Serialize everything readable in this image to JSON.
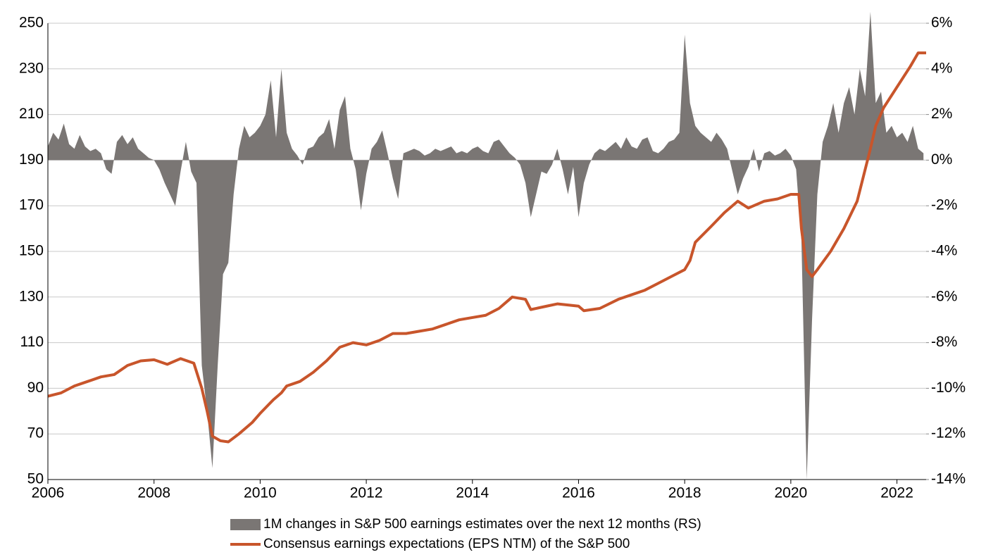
{
  "chart_data": {
    "type": "line",
    "xlim": [
      2006,
      2022.55
    ],
    "xticks": [
      2006,
      2008,
      2010,
      2012,
      2014,
      2016,
      2018,
      2020,
      2022
    ],
    "ylim": [
      50,
      250
    ],
    "yticks": [
      50,
      70,
      90,
      110,
      130,
      150,
      170,
      190,
      210,
      230,
      250
    ],
    "y2lim": [
      -14,
      6
    ],
    "y2ticks": [
      {
        "value": -14,
        "label": "-14%"
      },
      {
        "value": -12,
        "label": "-12%"
      },
      {
        "value": -10,
        "label": "-10%"
      },
      {
        "value": -8,
        "label": "-8%"
      },
      {
        "value": -6,
        "label": "-6%"
      },
      {
        "value": -4,
        "label": "-4%"
      },
      {
        "value": -2,
        "label": "-2%"
      },
      {
        "value": 0,
        "label": "0%"
      },
      {
        "value": 2,
        "label": "2%"
      },
      {
        "value": 4,
        "label": "4%"
      },
      {
        "value": 6,
        "label": "6%"
      }
    ],
    "grid": true,
    "legend": "bottom",
    "series": [
      {
        "name": "1M changes in S&P 500 earnings estimates over the next 12 months (RS)",
        "color": "#7a7674",
        "type": "area",
        "axis": "y2",
        "x": [
          2006.0,
          2006.1,
          2006.2,
          2006.3,
          2006.4,
          2006.5,
          2006.6,
          2006.7,
          2006.8,
          2006.9,
          2007.0,
          2007.1,
          2007.2,
          2007.3,
          2007.4,
          2007.5,
          2007.6,
          2007.7,
          2007.8,
          2007.9,
          2008.0,
          2008.1,
          2008.2,
          2008.3,
          2008.4,
          2008.5,
          2008.6,
          2008.7,
          2008.8,
          2008.9,
          2009.0,
          2009.1,
          2009.2,
          2009.3,
          2009.4,
          2009.5,
          2009.6,
          2009.7,
          2009.8,
          2009.9,
          2010.0,
          2010.1,
          2010.2,
          2010.3,
          2010.4,
          2010.5,
          2010.6,
          2010.7,
          2010.8,
          2010.9,
          2011.0,
          2011.1,
          2011.2,
          2011.3,
          2011.4,
          2011.5,
          2011.6,
          2011.7,
          2011.8,
          2011.9,
          2012.0,
          2012.1,
          2012.2,
          2012.3,
          2012.4,
          2012.5,
          2012.6,
          2012.7,
          2012.8,
          2012.9,
          2013.0,
          2013.1,
          2013.2,
          2013.3,
          2013.4,
          2013.5,
          2013.6,
          2013.7,
          2013.8,
          2013.9,
          2014.0,
          2014.1,
          2014.2,
          2014.3,
          2014.4,
          2014.5,
          2014.6,
          2014.7,
          2014.8,
          2014.9,
          2015.0,
          2015.1,
          2015.2,
          2015.3,
          2015.4,
          2015.5,
          2015.6,
          2015.7,
          2015.8,
          2015.9,
          2016.0,
          2016.1,
          2016.2,
          2016.3,
          2016.4,
          2016.5,
          2016.6,
          2016.7,
          2016.8,
          2016.9,
          2017.0,
          2017.1,
          2017.2,
          2017.3,
          2017.4,
          2017.5,
          2017.6,
          2017.7,
          2017.8,
          2017.9,
          2018.0,
          2018.1,
          2018.2,
          2018.3,
          2018.4,
          2018.5,
          2018.6,
          2018.7,
          2018.8,
          2018.9,
          2019.0,
          2019.1,
          2019.2,
          2019.3,
          2019.4,
          2019.5,
          2019.6,
          2019.7,
          2019.8,
          2019.9,
          2020.0,
          2020.1,
          2020.2,
          2020.3,
          2020.4,
          2020.5,
          2020.6,
          2020.7,
          2020.8,
          2020.9,
          2021.0,
          2021.1,
          2021.2,
          2021.3,
          2021.4,
          2021.5,
          2021.6,
          2021.7,
          2021.8,
          2021.9,
          2022.0,
          2022.1,
          2022.2,
          2022.3,
          2022.4,
          2022.5
        ],
        "values": [
          0.6,
          1.2,
          0.9,
          1.6,
          0.7,
          0.5,
          1.1,
          0.6,
          0.4,
          0.5,
          0.3,
          -0.4,
          -0.6,
          0.8,
          1.1,
          0.7,
          1.0,
          0.5,
          0.3,
          0.1,
          0,
          -0.4,
          -1.0,
          -1.5,
          -2.0,
          -0.5,
          0.8,
          -0.5,
          -1.0,
          -9,
          -11,
          -13.5,
          -9,
          -5,
          -4.5,
          -1.5,
          0.5,
          1.5,
          1.0,
          1.2,
          1.5,
          2.0,
          3.5,
          1.0,
          4.0,
          1.2,
          0.5,
          0.2,
          -0.2,
          0.5,
          0.6,
          1.0,
          1.2,
          1.8,
          0.5,
          2.2,
          2.8,
          0.5,
          -0.4,
          -2.2,
          -0.6,
          0.5,
          0.8,
          1.3,
          0.3,
          -0.8,
          -1.7,
          0.3,
          0.4,
          0.5,
          0.4,
          0.2,
          0.3,
          0.5,
          0.4,
          0.5,
          0.6,
          0.3,
          0.4,
          0.3,
          0.5,
          0.6,
          0.4,
          0.3,
          0.8,
          0.9,
          0.6,
          0.3,
          0.1,
          -0.2,
          -1.0,
          -2.5,
          -1.5,
          -0.5,
          -0.6,
          -0.2,
          0.5,
          -0.4,
          -1.5,
          -0.3,
          -2.5,
          -1.0,
          -0.2,
          0.3,
          0.5,
          0.4,
          0.6,
          0.8,
          0.5,
          1.0,
          0.6,
          0.5,
          0.9,
          1.0,
          0.4,
          0.3,
          0.5,
          0.8,
          0.9,
          1.2,
          5.5,
          2.5,
          1.5,
          1.2,
          1.0,
          0.8,
          1.2,
          0.9,
          0.5,
          -0.5,
          -1.5,
          -0.8,
          -0.3,
          0.5,
          -0.5,
          0.3,
          0.4,
          0.2,
          0.3,
          0.5,
          0.2,
          -0.4,
          -3.5,
          -14,
          -7,
          -1.5,
          0.8,
          1.5,
          2.5,
          1.2,
          2.5,
          3.2,
          2.0,
          4.0,
          2.8,
          6.5,
          2.5,
          3.0,
          1.2,
          1.5,
          1.0,
          1.2,
          0.8,
          1.5,
          0.5,
          0.3
        ]
      },
      {
        "name": "Consensus earnings expectations (EPS NTM) of the S&P 500",
        "color": "#c8552b",
        "type": "line",
        "axis": "y",
        "x": [
          2006.0,
          2006.25,
          2006.5,
          2006.75,
          2007.0,
          2007.25,
          2007.5,
          2007.75,
          2008.0,
          2008.25,
          2008.5,
          2008.75,
          2008.9,
          2009.0,
          2009.1,
          2009.25,
          2009.4,
          2009.6,
          2009.85,
          2010.0,
          2010.25,
          2010.4,
          2010.5,
          2010.75,
          2011.0,
          2011.25,
          2011.5,
          2011.75,
          2012.0,
          2012.25,
          2012.5,
          2012.75,
          2013.0,
          2013.25,
          2013.5,
          2013.75,
          2014.0,
          2014.25,
          2014.5,
          2014.75,
          2015.0,
          2015.1,
          2015.4,
          2015.6,
          2016.0,
          2016.1,
          2016.4,
          2016.75,
          2017.0,
          2017.25,
          2017.5,
          2017.75,
          2018.0,
          2018.1,
          2018.2,
          2018.5,
          2018.75,
          2019.0,
          2019.2,
          2019.5,
          2019.75,
          2020.0,
          2020.15,
          2020.2,
          2020.3,
          2020.4,
          2020.5,
          2020.75,
          2021.0,
          2021.25,
          2021.5,
          2021.6,
          2021.75,
          2022.0,
          2022.25,
          2022.4,
          2022.55
        ],
        "values": [
          86.5,
          88,
          91,
          93,
          95,
          96,
          100,
          102,
          102.5,
          100.5,
          103,
          101,
          90,
          80,
          69,
          67,
          66.5,
          70,
          75,
          79,
          85,
          88,
          91,
          93,
          97,
          102,
          108,
          110,
          109,
          111,
          114,
          114,
          115,
          116,
          118,
          120,
          121,
          122,
          125,
          130,
          129,
          124.5,
          126,
          127,
          126,
          124,
          125,
          129,
          131,
          133,
          136,
          139,
          142,
          146,
          154,
          161,
          167,
          172,
          169,
          172,
          173,
          175,
          175,
          160,
          142,
          139,
          142,
          150,
          160,
          172,
          195,
          205,
          213,
          222,
          231,
          237,
          237
        ]
      }
    ]
  }
}
